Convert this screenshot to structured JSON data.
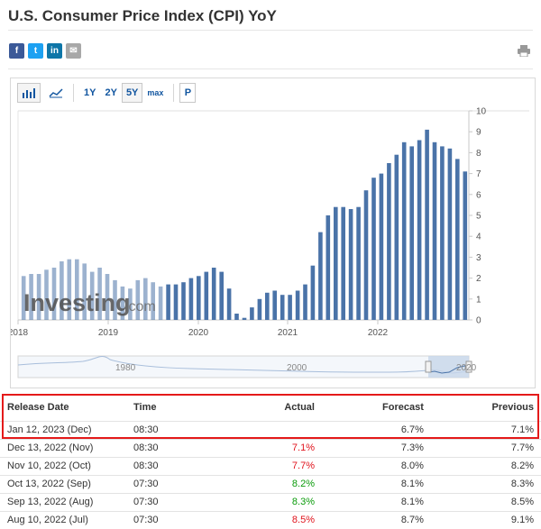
{
  "page": {
    "title": "U.S. Consumer Price Index (CPI) YoY"
  },
  "share": [
    {
      "name": "facebook-share-button",
      "glyph": "f"
    },
    {
      "name": "twitter-share-button",
      "glyph": "t"
    },
    {
      "name": "linkedin-share-button",
      "glyph": "in"
    },
    {
      "name": "email-share-button",
      "glyph": "✉"
    }
  ],
  "toolbar": {
    "ranges": [
      "1Y",
      "2Y",
      "5Y",
      "max"
    ],
    "active_range": "5Y",
    "p_label": "P"
  },
  "chart_data": {
    "type": "bar",
    "watermark": "Investing",
    "watermark_suffix": ".com",
    "x_tick_labels": [
      "2018",
      "2019",
      "2020",
      "2021",
      "2022"
    ],
    "ylim": [
      0,
      10
    ],
    "y_ticks": [
      0,
      1,
      2,
      3,
      4,
      5,
      6,
      7,
      8,
      9,
      10
    ],
    "values": [
      2.1,
      2.2,
      2.2,
      2.4,
      2.5,
      2.8,
      2.9,
      2.9,
      2.7,
      2.3,
      2.5,
      2.2,
      1.9,
      1.6,
      1.5,
      1.9,
      2.0,
      1.8,
      1.6,
      1.7,
      1.7,
      1.8,
      2.0,
      2.1,
      2.3,
      2.5,
      2.3,
      1.5,
      0.3,
      0.1,
      0.6,
      1.0,
      1.3,
      1.4,
      1.2,
      1.2,
      1.4,
      1.7,
      2.6,
      4.2,
      5.0,
      5.4,
      5.4,
      5.3,
      5.4,
      6.2,
      6.8,
      7.0,
      7.5,
      7.9,
      8.5,
      8.3,
      8.6,
      9.1,
      8.5,
      8.3,
      8.2,
      7.7,
      7.1
    ],
    "navigator_labels": [
      "1980",
      "2000",
      "2020"
    ]
  },
  "table": {
    "headers": {
      "date": "Release Date",
      "time": "Time",
      "actual": "Actual",
      "forecast": "Forecast",
      "previous": "Previous"
    },
    "rows": [
      {
        "date": "Jan 12, 2023 (Dec)",
        "time": "08:30",
        "actual": "",
        "actual_color": "",
        "forecast": "6.7%",
        "previous": "7.1%"
      },
      {
        "date": "Dec 13, 2022 (Nov)",
        "time": "08:30",
        "actual": "7.1%",
        "actual_color": "red",
        "forecast": "7.3%",
        "previous": "7.7%"
      },
      {
        "date": "Nov 10, 2022 (Oct)",
        "time": "08:30",
        "actual": "7.7%",
        "actual_color": "red",
        "forecast": "8.0%",
        "previous": "8.2%"
      },
      {
        "date": "Oct 13, 2022 (Sep)",
        "time": "07:30",
        "actual": "8.2%",
        "actual_color": "green",
        "forecast": "8.1%",
        "previous": "8.3%"
      },
      {
        "date": "Sep 13, 2022 (Aug)",
        "time": "07:30",
        "actual": "8.3%",
        "actual_color": "green",
        "forecast": "8.1%",
        "previous": "8.5%"
      },
      {
        "date": "Aug 10, 2022 (Jul)",
        "time": "07:30",
        "actual": "8.5%",
        "actual_color": "red",
        "forecast": "8.7%",
        "previous": "9.1%"
      }
    ]
  },
  "colors": {
    "bar": "#4a73a8",
    "bar_watermark": "#9fb3cf",
    "axis_text": "#555555",
    "highlight": "#e41a1a"
  }
}
